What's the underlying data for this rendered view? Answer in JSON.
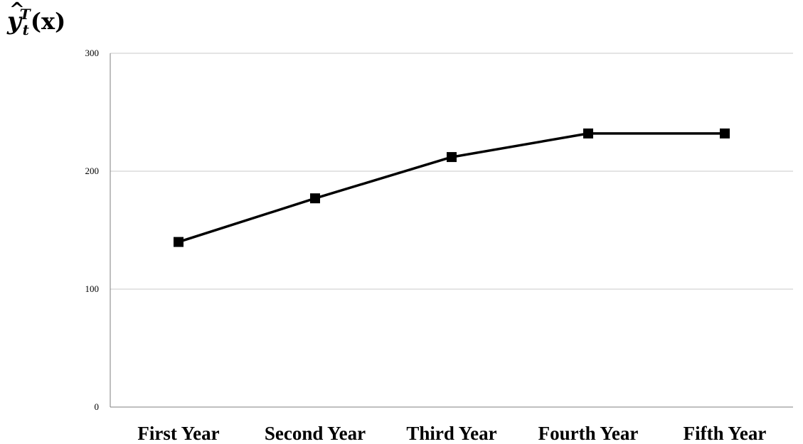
{
  "chart_data": {
    "type": "line",
    "ylabel": {
      "base": "y",
      "hat": "^",
      "superscript": "T",
      "subscript": "t",
      "argument": "(x)"
    },
    "categories": [
      "First Year",
      "Second  Year",
      "Third Year",
      "Fourth Year",
      "Fifth Year"
    ],
    "series": [
      {
        "values": [
          140,
          177,
          212,
          232,
          232
        ]
      }
    ],
    "ylim": [
      0,
      300
    ],
    "yticks": [
      "0",
      "100",
      "200",
      "300"
    ],
    "grid": true,
    "marker": "square",
    "line_color": "#000000"
  }
}
